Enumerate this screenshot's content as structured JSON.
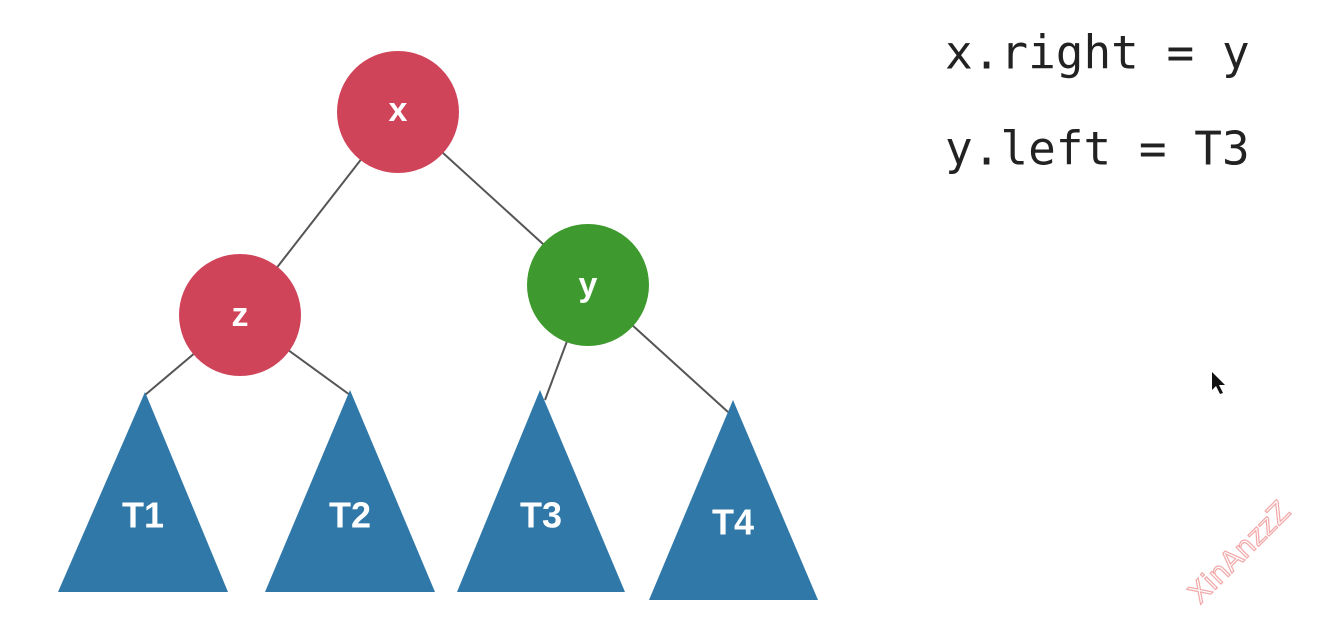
{
  "tree": {
    "nodes": [
      {
        "label": "x"
      },
      {
        "label": "z"
      },
      {
        "label": "y"
      }
    ],
    "subtrees": [
      {
        "label": "T1"
      },
      {
        "label": "T2"
      },
      {
        "label": "T3"
      },
      {
        "label": "T4"
      }
    ]
  },
  "code": [
    "x.right = y",
    "y.left = T3"
  ],
  "watermark": "XinAnzzZ"
}
